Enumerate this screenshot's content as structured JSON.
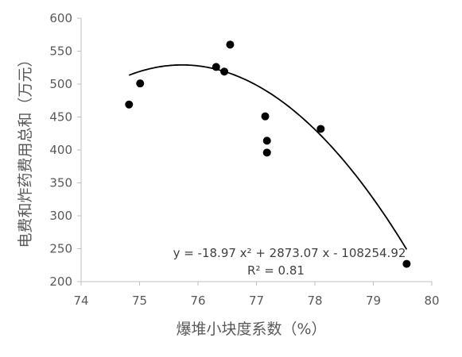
{
  "chart_data": {
    "type": "scatter",
    "title": "",
    "xlabel": "爆堆小块度系数（%）",
    "ylabel": "电费和炸药费用总和（万元）",
    "xlim": [
      74,
      80
    ],
    "ylim": [
      200,
      600
    ],
    "x_ticks": [
      "74",
      "75",
      "76",
      "77",
      "78",
      "79",
      "80"
    ],
    "y_ticks": [
      "200",
      "250",
      "300",
      "350",
      "400",
      "450",
      "500",
      "550",
      "600"
    ],
    "grid": false,
    "legend": "none",
    "points": [
      {
        "x": 74.82,
        "y": 469
      },
      {
        "x": 75.01,
        "y": 501
      },
      {
        "x": 76.31,
        "y": 526
      },
      {
        "x": 76.45,
        "y": 519
      },
      {
        "x": 76.55,
        "y": 560
      },
      {
        "x": 77.15,
        "y": 451
      },
      {
        "x": 77.18,
        "y": 414
      },
      {
        "x": 77.18,
        "y": 396
      },
      {
        "x": 78.1,
        "y": 432
      },
      {
        "x": 79.57,
        "y": 227
      }
    ],
    "trendline": {
      "type": "polynomial",
      "order": 2,
      "a": -18.97,
      "b": 2873.07,
      "c": -108254.92,
      "x_range": [
        74.82,
        79.57
      ]
    },
    "equation_text": "y = -18.97 x² + 2873.07 x - 108254.92",
    "r2_text": "R² = 0.81",
    "colors": {
      "axis": "#bfbfbf",
      "marker": "#000000",
      "line": "#000000",
      "text": "#595959"
    }
  }
}
